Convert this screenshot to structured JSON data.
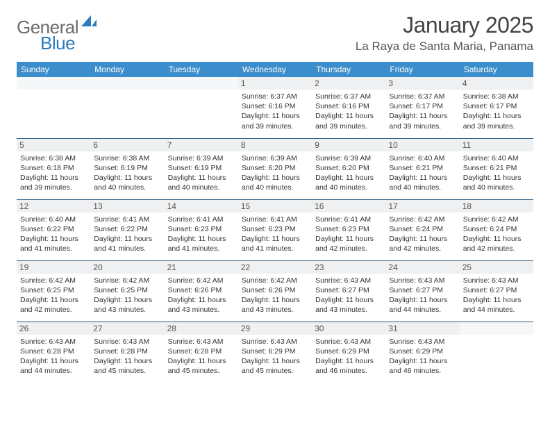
{
  "logo": {
    "text1": "General",
    "text2": "Blue",
    "color1": "#6b6b6b",
    "color2": "#2b7bbf"
  },
  "title": "January 2025",
  "location": "La Raya de Santa Maria, Panama",
  "dayHeaders": [
    "Sunday",
    "Monday",
    "Tuesday",
    "Wednesday",
    "Thursday",
    "Friday",
    "Saturday"
  ],
  "colors": {
    "headerBg": "#3b8dcb",
    "headerText": "#ffffff",
    "cellBorder": "#2b5b7f",
    "dayNumBg": "#eef0f1",
    "background": "#ffffff"
  },
  "weeks": [
    [
      {
        "n": "",
        "sunrise": "",
        "sunset": "",
        "daylight": ""
      },
      {
        "n": "",
        "sunrise": "",
        "sunset": "",
        "daylight": ""
      },
      {
        "n": "",
        "sunrise": "",
        "sunset": "",
        "daylight": ""
      },
      {
        "n": "1",
        "sunrise": "Sunrise: 6:37 AM",
        "sunset": "Sunset: 6:16 PM",
        "daylight": "Daylight: 11 hours and 39 minutes."
      },
      {
        "n": "2",
        "sunrise": "Sunrise: 6:37 AM",
        "sunset": "Sunset: 6:16 PM",
        "daylight": "Daylight: 11 hours and 39 minutes."
      },
      {
        "n": "3",
        "sunrise": "Sunrise: 6:37 AM",
        "sunset": "Sunset: 6:17 PM",
        "daylight": "Daylight: 11 hours and 39 minutes."
      },
      {
        "n": "4",
        "sunrise": "Sunrise: 6:38 AM",
        "sunset": "Sunset: 6:17 PM",
        "daylight": "Daylight: 11 hours and 39 minutes."
      }
    ],
    [
      {
        "n": "5",
        "sunrise": "Sunrise: 6:38 AM",
        "sunset": "Sunset: 6:18 PM",
        "daylight": "Daylight: 11 hours and 39 minutes."
      },
      {
        "n": "6",
        "sunrise": "Sunrise: 6:38 AM",
        "sunset": "Sunset: 6:19 PM",
        "daylight": "Daylight: 11 hours and 40 minutes."
      },
      {
        "n": "7",
        "sunrise": "Sunrise: 6:39 AM",
        "sunset": "Sunset: 6:19 PM",
        "daylight": "Daylight: 11 hours and 40 minutes."
      },
      {
        "n": "8",
        "sunrise": "Sunrise: 6:39 AM",
        "sunset": "Sunset: 6:20 PM",
        "daylight": "Daylight: 11 hours and 40 minutes."
      },
      {
        "n": "9",
        "sunrise": "Sunrise: 6:39 AM",
        "sunset": "Sunset: 6:20 PM",
        "daylight": "Daylight: 11 hours and 40 minutes."
      },
      {
        "n": "10",
        "sunrise": "Sunrise: 6:40 AM",
        "sunset": "Sunset: 6:21 PM",
        "daylight": "Daylight: 11 hours and 40 minutes."
      },
      {
        "n": "11",
        "sunrise": "Sunrise: 6:40 AM",
        "sunset": "Sunset: 6:21 PM",
        "daylight": "Daylight: 11 hours and 40 minutes."
      }
    ],
    [
      {
        "n": "12",
        "sunrise": "Sunrise: 6:40 AM",
        "sunset": "Sunset: 6:22 PM",
        "daylight": "Daylight: 11 hours and 41 minutes."
      },
      {
        "n": "13",
        "sunrise": "Sunrise: 6:41 AM",
        "sunset": "Sunset: 6:22 PM",
        "daylight": "Daylight: 11 hours and 41 minutes."
      },
      {
        "n": "14",
        "sunrise": "Sunrise: 6:41 AM",
        "sunset": "Sunset: 6:23 PM",
        "daylight": "Daylight: 11 hours and 41 minutes."
      },
      {
        "n": "15",
        "sunrise": "Sunrise: 6:41 AM",
        "sunset": "Sunset: 6:23 PM",
        "daylight": "Daylight: 11 hours and 41 minutes."
      },
      {
        "n": "16",
        "sunrise": "Sunrise: 6:41 AM",
        "sunset": "Sunset: 6:23 PM",
        "daylight": "Daylight: 11 hours and 42 minutes."
      },
      {
        "n": "17",
        "sunrise": "Sunrise: 6:42 AM",
        "sunset": "Sunset: 6:24 PM",
        "daylight": "Daylight: 11 hours and 42 minutes."
      },
      {
        "n": "18",
        "sunrise": "Sunrise: 6:42 AM",
        "sunset": "Sunset: 6:24 PM",
        "daylight": "Daylight: 11 hours and 42 minutes."
      }
    ],
    [
      {
        "n": "19",
        "sunrise": "Sunrise: 6:42 AM",
        "sunset": "Sunset: 6:25 PM",
        "daylight": "Daylight: 11 hours and 42 minutes."
      },
      {
        "n": "20",
        "sunrise": "Sunrise: 6:42 AM",
        "sunset": "Sunset: 6:25 PM",
        "daylight": "Daylight: 11 hours and 43 minutes."
      },
      {
        "n": "21",
        "sunrise": "Sunrise: 6:42 AM",
        "sunset": "Sunset: 6:26 PM",
        "daylight": "Daylight: 11 hours and 43 minutes."
      },
      {
        "n": "22",
        "sunrise": "Sunrise: 6:42 AM",
        "sunset": "Sunset: 6:26 PM",
        "daylight": "Daylight: 11 hours and 43 minutes."
      },
      {
        "n": "23",
        "sunrise": "Sunrise: 6:43 AM",
        "sunset": "Sunset: 6:27 PM",
        "daylight": "Daylight: 11 hours and 43 minutes."
      },
      {
        "n": "24",
        "sunrise": "Sunrise: 6:43 AM",
        "sunset": "Sunset: 6:27 PM",
        "daylight": "Daylight: 11 hours and 44 minutes."
      },
      {
        "n": "25",
        "sunrise": "Sunrise: 6:43 AM",
        "sunset": "Sunset: 6:27 PM",
        "daylight": "Daylight: 11 hours and 44 minutes."
      }
    ],
    [
      {
        "n": "26",
        "sunrise": "Sunrise: 6:43 AM",
        "sunset": "Sunset: 6:28 PM",
        "daylight": "Daylight: 11 hours and 44 minutes."
      },
      {
        "n": "27",
        "sunrise": "Sunrise: 6:43 AM",
        "sunset": "Sunset: 6:28 PM",
        "daylight": "Daylight: 11 hours and 45 minutes."
      },
      {
        "n": "28",
        "sunrise": "Sunrise: 6:43 AM",
        "sunset": "Sunset: 6:28 PM",
        "daylight": "Daylight: 11 hours and 45 minutes."
      },
      {
        "n": "29",
        "sunrise": "Sunrise: 6:43 AM",
        "sunset": "Sunset: 6:29 PM",
        "daylight": "Daylight: 11 hours and 45 minutes."
      },
      {
        "n": "30",
        "sunrise": "Sunrise: 6:43 AM",
        "sunset": "Sunset: 6:29 PM",
        "daylight": "Daylight: 11 hours and 46 minutes."
      },
      {
        "n": "31",
        "sunrise": "Sunrise: 6:43 AM",
        "sunset": "Sunset: 6:29 PM",
        "daylight": "Daylight: 11 hours and 46 minutes."
      },
      {
        "n": "",
        "sunrise": "",
        "sunset": "",
        "daylight": ""
      }
    ]
  ]
}
